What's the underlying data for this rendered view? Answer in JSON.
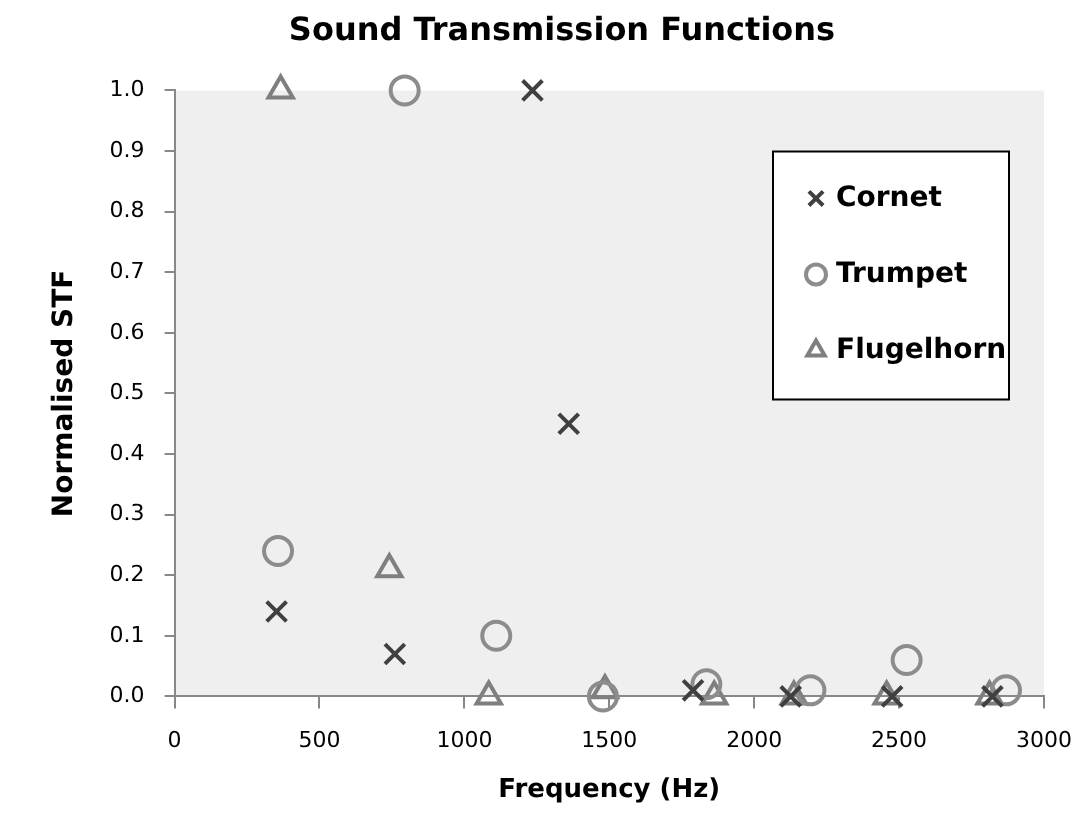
{
  "chart_data": {
    "type": "scatter",
    "title": "Sound Transmission Functions",
    "xlabel": "Frequency (Hz)",
    "ylabel": "Normalised STF",
    "series": [
      {
        "name": "Cornet",
        "color": "#404040",
        "marker": "cross",
        "x": [
          352,
          760,
          1235,
          1360,
          1789,
          2126,
          2476,
          2822
        ],
        "values": [
          0.14,
          0.07,
          1.0,
          0.45,
          0.01,
          0,
          0,
          0
        ]
      },
      {
        "name": "Trumpet",
        "color": "#8c8c8c",
        "marker": "circle",
        "x": [
          357,
          794,
          1110,
          1478,
          1835,
          2194,
          2526,
          2869
        ],
        "values": [
          0.24,
          1.0,
          0.1,
          0,
          0.02,
          0.01,
          0.06,
          0.01
        ]
      },
      {
        "name": "Flugelhorn",
        "color": "#7f7f7f",
        "marker": "triangle",
        "x": [
          366,
          741,
          1084,
          1485,
          1862,
          2137,
          2457,
          2812
        ],
        "values": [
          1.0,
          0.21,
          0,
          0.01,
          0,
          0,
          0,
          0
        ]
      }
    ],
    "xlim": [
      0,
      3000
    ],
    "xticks": [
      0,
      500,
      1000,
      1500,
      2000,
      2500,
      3000
    ],
    "ylim": [
      0,
      1
    ],
    "yticks": [
      {
        "value": 0,
        "label": "0.0"
      },
      {
        "value": 0.1,
        "label": "0.1"
      },
      {
        "value": 0.2,
        "label": "0.2"
      },
      {
        "value": 0.3,
        "label": "0.3"
      },
      {
        "value": 0.4,
        "label": "0.4"
      },
      {
        "value": 0.5,
        "label": "0.5"
      },
      {
        "value": 0.6,
        "label": "0.6"
      },
      {
        "value": 0.7,
        "label": "0.7"
      },
      {
        "value": 0.8,
        "label": "0.8"
      },
      {
        "value": 0.9,
        "label": "0.9"
      },
      {
        "value": 1,
        "label": "1.0"
      }
    ],
    "grid": false,
    "legend": "top right"
  }
}
